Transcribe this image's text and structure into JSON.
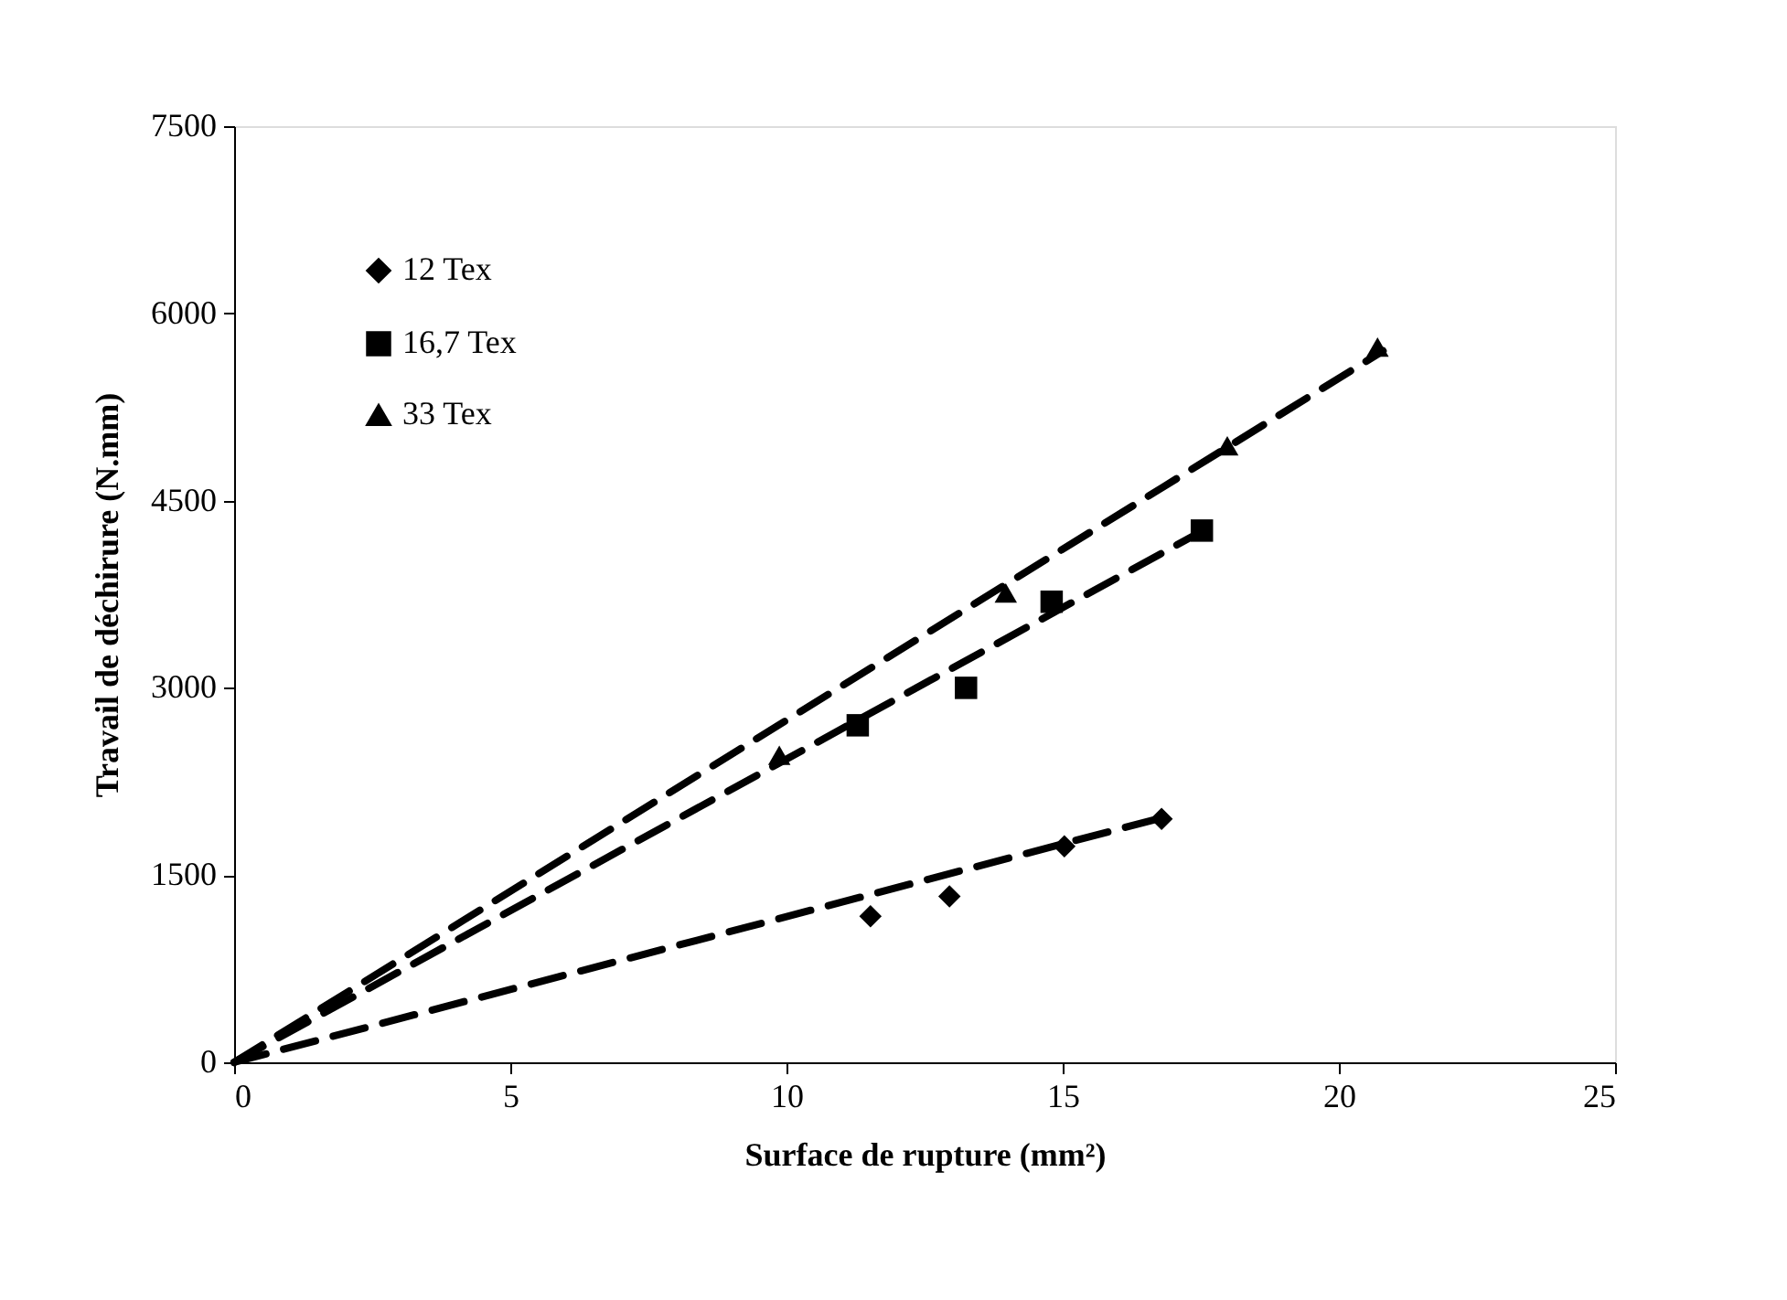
{
  "chart_data": {
    "type": "scatter",
    "xlabel": "Surface de rupture (mm²)",
    "ylabel": "Travail de déchirure (N.mm)",
    "xlim": [
      0,
      25
    ],
    "xticks": [
      0,
      5,
      10,
      15,
      20,
      25
    ],
    "ylim": [
      0,
      7500
    ],
    "yticks": [
      0,
      1500,
      3000,
      4500,
      6000,
      7500
    ],
    "grid": false,
    "legend": "top left",
    "series": [
      {
        "name": "12 Tex",
        "color": "#000000",
        "marker": "diamond",
        "x": [
          11.52,
          12.95,
          15.03,
          16.79
        ],
        "values": [
          1170,
          1330,
          1730,
          1950
        ]
      },
      {
        "name": "16,7 Tex",
        "color": "#000000",
        "marker": "square",
        "x": [
          11.29,
          13.25,
          14.8,
          17.52
        ],
        "values": [
          2700,
          3000,
          3690,
          4260
        ]
      },
      {
        "name": "33 Tex",
        "color": "#000000",
        "marker": "triangle",
        "x": [
          9.87,
          13.97,
          17.98,
          20.7
        ],
        "values": [
          2460,
          3760,
          4940,
          5730
        ]
      },
      {
        "type": "line",
        "color": "#000000",
        "marker": "none",
        "line_style": "dashed",
        "x": [
          0,
          16.8
        ],
        "values": [
          0,
          1960
        ]
      },
      {
        "type": "line",
        "color": "#000000",
        "marker": "none",
        "line_style": "dashed",
        "x": [
          0,
          17.5
        ],
        "values": [
          0,
          4250
        ]
      },
      {
        "type": "line",
        "color": "#000000",
        "marker": "none",
        "line_style": "dashed",
        "x": [
          0,
          20.8
        ],
        "values": [
          0,
          5700
        ]
      }
    ]
  }
}
